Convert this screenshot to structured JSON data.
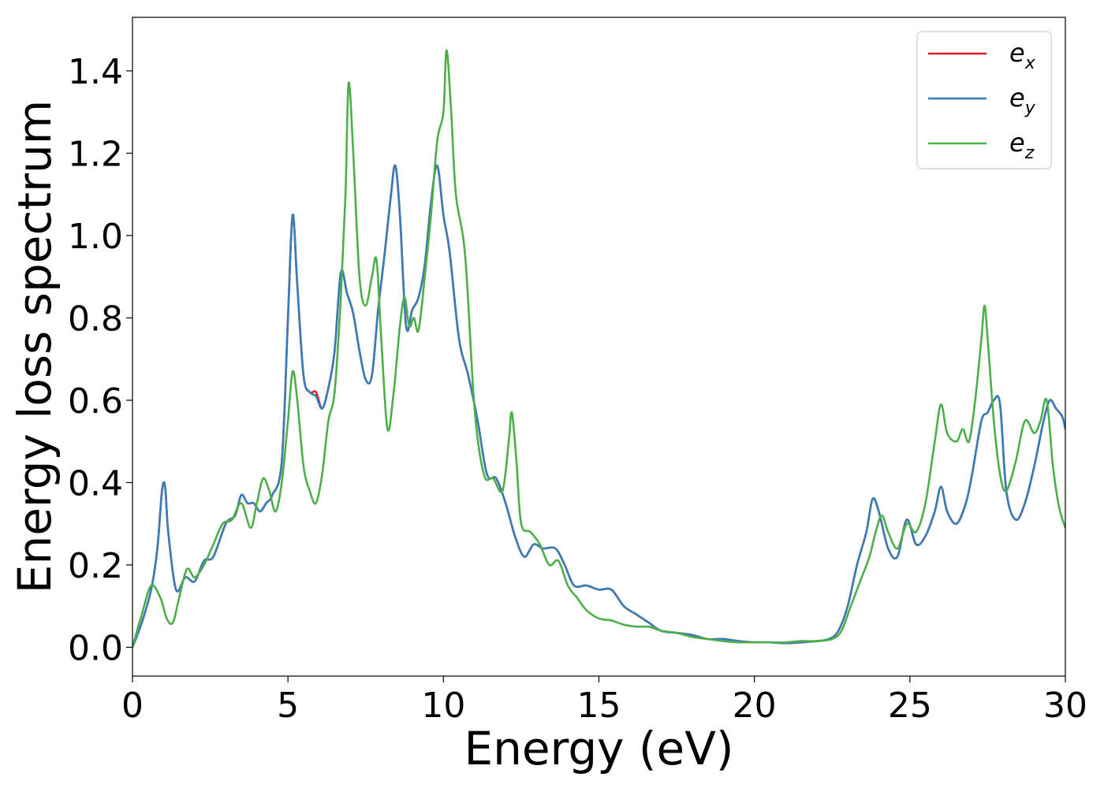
{
  "chart_data": {
    "type": "line",
    "title": "",
    "xlabel": "Energy (eV)",
    "ylabel": "Energy loss spectrum",
    "xlim": [
      0,
      30
    ],
    "ylim": [
      -0.07,
      1.53
    ],
    "xticks": [
      0,
      5,
      10,
      15,
      20,
      25,
      30
    ],
    "xtick_labels": [
      "0",
      "5",
      "10",
      "15",
      "20",
      "25",
      "30"
    ],
    "yticks": [
      0.0,
      0.2,
      0.4,
      0.6,
      0.8,
      1.0,
      1.2,
      1.4
    ],
    "ytick_labels": [
      "0.0",
      "0.2",
      "0.4",
      "0.6",
      "0.8",
      "1.0",
      "1.2",
      "1.4"
    ],
    "grid": false,
    "legend_position": "top-right",
    "series": [
      {
        "name": "e_x",
        "legend_base": "e",
        "legend_sub": "x",
        "color": "#e41a1c",
        "x": [
          0,
          0.3,
          0.6,
          0.8,
          0.95,
          1.05,
          1.15,
          1.4,
          1.7,
          2.0,
          2.3,
          2.6,
          3.0,
          3.3,
          3.5,
          3.7,
          3.9,
          4.1,
          4.3,
          4.5,
          4.8,
          5.0,
          5.15,
          5.3,
          5.5,
          5.7,
          5.9,
          6.1,
          6.3,
          6.5,
          6.7,
          6.9,
          7.1,
          7.3,
          7.5,
          7.7,
          7.9,
          8.1,
          8.3,
          8.45,
          8.6,
          8.8,
          9.0,
          9.2,
          9.4,
          9.6,
          9.8,
          10.0,
          10.2,
          10.5,
          10.8,
          11.1,
          11.4,
          11.7,
          12.0,
          12.3,
          12.6,
          12.9,
          13.2,
          13.6,
          13.9,
          14.2,
          14.6,
          15.0,
          15.4,
          15.8,
          16.2,
          16.6,
          17.0,
          17.5,
          18.0,
          18.5,
          19.0,
          19.5,
          20.0,
          20.5,
          21.0,
          21.5,
          22.0,
          22.4,
          22.7,
          23.0,
          23.3,
          23.6,
          23.8,
          24.0,
          24.3,
          24.6,
          24.9,
          25.2,
          25.5,
          25.8,
          26.0,
          26.2,
          26.5,
          26.8,
          27.0,
          27.3,
          27.5,
          27.7,
          27.9,
          28.1,
          28.4,
          28.7,
          29.0,
          29.3,
          29.5,
          29.7,
          29.9,
          30.0
        ],
        "y": [
          0.0,
          0.06,
          0.14,
          0.24,
          0.38,
          0.39,
          0.28,
          0.14,
          0.17,
          0.16,
          0.21,
          0.22,
          0.3,
          0.32,
          0.37,
          0.35,
          0.35,
          0.33,
          0.35,
          0.37,
          0.45,
          0.8,
          1.05,
          0.88,
          0.66,
          0.62,
          0.62,
          0.58,
          0.63,
          0.72,
          0.91,
          0.86,
          0.81,
          0.72,
          0.65,
          0.66,
          0.82,
          0.95,
          1.09,
          1.17,
          1.05,
          0.78,
          0.82,
          0.85,
          0.93,
          1.08,
          1.17,
          1.05,
          0.96,
          0.75,
          0.66,
          0.55,
          0.42,
          0.41,
          0.35,
          0.27,
          0.22,
          0.25,
          0.24,
          0.24,
          0.2,
          0.15,
          0.15,
          0.14,
          0.14,
          0.1,
          0.08,
          0.06,
          0.04,
          0.035,
          0.03,
          0.02,
          0.02,
          0.015,
          0.012,
          0.012,
          0.01,
          0.012,
          0.015,
          0.02,
          0.04,
          0.1,
          0.2,
          0.28,
          0.36,
          0.33,
          0.24,
          0.22,
          0.31,
          0.25,
          0.27,
          0.33,
          0.39,
          0.33,
          0.3,
          0.35,
          0.42,
          0.55,
          0.57,
          0.6,
          0.59,
          0.38,
          0.31,
          0.35,
          0.44,
          0.55,
          0.6,
          0.58,
          0.56,
          0.53
        ]
      },
      {
        "name": "e_y",
        "legend_base": "e",
        "legend_sub": "y",
        "color": "#377eb8",
        "x": [
          0,
          0.3,
          0.6,
          0.8,
          0.95,
          1.05,
          1.15,
          1.4,
          1.7,
          2.0,
          2.3,
          2.6,
          3.0,
          3.3,
          3.5,
          3.7,
          3.9,
          4.1,
          4.3,
          4.5,
          4.8,
          5.0,
          5.15,
          5.3,
          5.5,
          5.7,
          5.9,
          6.1,
          6.3,
          6.5,
          6.7,
          6.9,
          7.1,
          7.3,
          7.5,
          7.7,
          7.9,
          8.1,
          8.3,
          8.45,
          8.6,
          8.8,
          9.0,
          9.2,
          9.4,
          9.6,
          9.8,
          10.0,
          10.2,
          10.5,
          10.8,
          11.1,
          11.4,
          11.7,
          12.0,
          12.3,
          12.6,
          12.9,
          13.2,
          13.6,
          13.9,
          14.2,
          14.6,
          15.0,
          15.4,
          15.8,
          16.2,
          16.6,
          17.0,
          17.5,
          18.0,
          18.5,
          19.0,
          19.5,
          20.0,
          20.5,
          21.0,
          21.5,
          22.0,
          22.4,
          22.7,
          23.0,
          23.3,
          23.6,
          23.8,
          24.0,
          24.3,
          24.6,
          24.9,
          25.2,
          25.5,
          25.8,
          26.0,
          26.2,
          26.5,
          26.8,
          27.0,
          27.3,
          27.5,
          27.7,
          27.9,
          28.1,
          28.4,
          28.7,
          29.0,
          29.3,
          29.5,
          29.7,
          29.9,
          30.0
        ],
        "y": [
          0.0,
          0.06,
          0.14,
          0.24,
          0.38,
          0.39,
          0.28,
          0.14,
          0.17,
          0.16,
          0.21,
          0.22,
          0.3,
          0.32,
          0.37,
          0.35,
          0.35,
          0.33,
          0.35,
          0.37,
          0.45,
          0.8,
          1.05,
          0.88,
          0.66,
          0.62,
          0.61,
          0.58,
          0.63,
          0.72,
          0.91,
          0.86,
          0.81,
          0.72,
          0.65,
          0.66,
          0.82,
          0.95,
          1.09,
          1.17,
          1.05,
          0.78,
          0.82,
          0.85,
          0.93,
          1.08,
          1.17,
          1.05,
          0.96,
          0.75,
          0.66,
          0.55,
          0.42,
          0.41,
          0.35,
          0.27,
          0.22,
          0.25,
          0.24,
          0.24,
          0.2,
          0.15,
          0.15,
          0.14,
          0.14,
          0.1,
          0.08,
          0.06,
          0.04,
          0.035,
          0.03,
          0.02,
          0.02,
          0.015,
          0.012,
          0.012,
          0.01,
          0.012,
          0.015,
          0.02,
          0.04,
          0.1,
          0.2,
          0.28,
          0.36,
          0.33,
          0.24,
          0.22,
          0.31,
          0.25,
          0.27,
          0.33,
          0.39,
          0.33,
          0.3,
          0.35,
          0.42,
          0.55,
          0.57,
          0.6,
          0.59,
          0.38,
          0.31,
          0.35,
          0.44,
          0.55,
          0.6,
          0.58,
          0.56,
          0.53
        ]
      },
      {
        "name": "e_z",
        "legend_base": "e",
        "legend_sub": "z",
        "color": "#4daf4a",
        "x": [
          0,
          0.3,
          0.6,
          0.9,
          1.1,
          1.3,
          1.5,
          1.75,
          2.0,
          2.3,
          2.6,
          2.9,
          3.2,
          3.5,
          3.8,
          4.0,
          4.2,
          4.4,
          4.6,
          4.8,
          5.0,
          5.15,
          5.3,
          5.5,
          5.7,
          5.9,
          6.1,
          6.3,
          6.5,
          6.7,
          6.85,
          6.95,
          7.1,
          7.3,
          7.5,
          7.7,
          7.85,
          8.0,
          8.2,
          8.4,
          8.6,
          8.75,
          8.9,
          9.05,
          9.2,
          9.4,
          9.6,
          9.8,
          10.0,
          10.1,
          10.25,
          10.4,
          10.7,
          11.0,
          11.3,
          11.6,
          11.9,
          12.1,
          12.2,
          12.35,
          12.5,
          12.8,
          13.1,
          13.4,
          13.7,
          14.0,
          14.3,
          14.6,
          15.0,
          15.4,
          15.8,
          16.2,
          16.6,
          17.0,
          17.5,
          18.0,
          18.5,
          19.0,
          19.5,
          20.0,
          20.5,
          21.0,
          21.5,
          22.0,
          22.5,
          22.8,
          23.1,
          23.4,
          23.7,
          23.9,
          24.1,
          24.3,
          24.6,
          24.9,
          25.2,
          25.5,
          25.8,
          26.0,
          26.2,
          26.5,
          26.7,
          26.9,
          27.1,
          27.3,
          27.4,
          27.5,
          27.7,
          27.9,
          28.1,
          28.4,
          28.7,
          29.0,
          29.2,
          29.4,
          29.6,
          29.8,
          30.0
        ],
        "y": [
          0.0,
          0.08,
          0.15,
          0.12,
          0.07,
          0.06,
          0.12,
          0.19,
          0.17,
          0.2,
          0.25,
          0.3,
          0.31,
          0.35,
          0.29,
          0.35,
          0.41,
          0.38,
          0.33,
          0.4,
          0.55,
          0.67,
          0.6,
          0.44,
          0.38,
          0.35,
          0.42,
          0.55,
          0.62,
          0.85,
          1.1,
          1.37,
          1.2,
          0.9,
          0.83,
          0.9,
          0.94,
          0.75,
          0.53,
          0.62,
          0.78,
          0.85,
          0.78,
          0.8,
          0.77,
          0.9,
          1.05,
          1.23,
          1.3,
          1.45,
          1.3,
          1.1,
          0.95,
          0.58,
          0.42,
          0.41,
          0.38,
          0.5,
          0.57,
          0.45,
          0.3,
          0.28,
          0.25,
          0.2,
          0.21,
          0.15,
          0.12,
          0.09,
          0.07,
          0.065,
          0.055,
          0.05,
          0.05,
          0.04,
          0.035,
          0.025,
          0.02,
          0.015,
          0.012,
          0.012,
          0.012,
          0.012,
          0.015,
          0.015,
          0.02,
          0.04,
          0.1,
          0.16,
          0.22,
          0.28,
          0.32,
          0.28,
          0.24,
          0.3,
          0.28,
          0.35,
          0.5,
          0.59,
          0.52,
          0.5,
          0.53,
          0.5,
          0.6,
          0.75,
          0.83,
          0.75,
          0.55,
          0.42,
          0.38,
          0.45,
          0.55,
          0.52,
          0.55,
          0.6,
          0.44,
          0.34,
          0.29
        ]
      }
    ]
  }
}
